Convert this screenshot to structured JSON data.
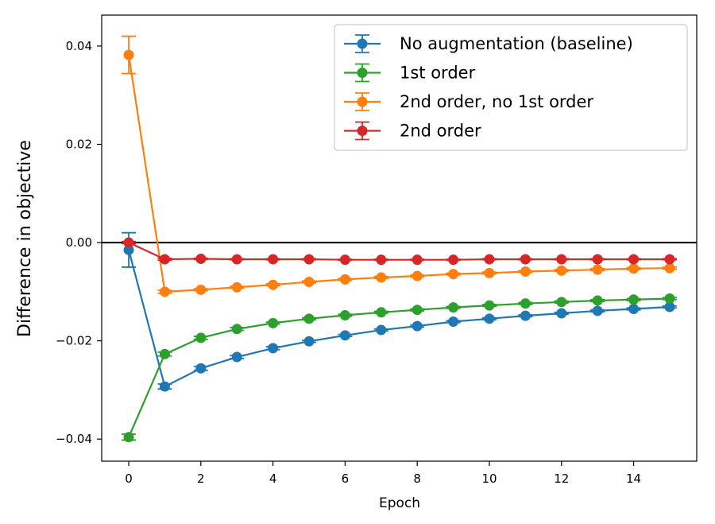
{
  "chart_data": {
    "type": "line",
    "title": "",
    "xlabel": "Epoch",
    "ylabel": "Difference in objective",
    "xlim": [
      -0.75,
      15.75
    ],
    "ylim": [
      -0.0445,
      0.0463
    ],
    "xticks": [
      0,
      2,
      4,
      6,
      8,
      10,
      12,
      14
    ],
    "yticks": [
      -0.04,
      -0.02,
      0.0,
      0.02,
      0.04
    ],
    "ytick_labels": [
      "−0.04",
      "−0.02",
      "0.00",
      "0.02",
      "0.04"
    ],
    "reference_line_y": 0,
    "grid": false,
    "legend_position": "top-right",
    "x": [
      0,
      1,
      2,
      3,
      4,
      5,
      6,
      7,
      8,
      9,
      10,
      11,
      12,
      13,
      14,
      15
    ],
    "series": [
      {
        "name": "No augmentation (baseline)",
        "color": "#1f77b4",
        "values": [
          -0.0015,
          -0.0293,
          -0.0256,
          -0.0233,
          -0.0215,
          -0.0201,
          -0.0189,
          -0.0178,
          -0.017,
          -0.0161,
          -0.0155,
          -0.0149,
          -0.0144,
          -0.0139,
          -0.0135,
          -0.0131
        ],
        "errors": [
          0.0035,
          0.0005,
          0.0004,
          0.0003,
          0.0003,
          0.0002,
          0.0002,
          0.0002,
          0.0002,
          0.0002,
          0.0002,
          0.0002,
          0.0002,
          0.0002,
          0.0002,
          0.0002
        ]
      },
      {
        "name": "1st order",
        "color": "#2ca02c",
        "values": [
          -0.0396,
          -0.0227,
          -0.0194,
          -0.0176,
          -0.0164,
          -0.0155,
          -0.0148,
          -0.0142,
          -0.0137,
          -0.0132,
          -0.0128,
          -0.0124,
          -0.0121,
          -0.0118,
          -0.0116,
          -0.0114
        ],
        "errors": [
          0.0006,
          0.0004,
          0.0003,
          0.0003,
          0.0002,
          0.0002,
          0.0002,
          0.0002,
          0.0002,
          0.0002,
          0.0002,
          0.0002,
          0.0002,
          0.0002,
          0.0002,
          0.0002
        ]
      },
      {
        "name": "2nd order, no 1st order",
        "color": "#ff7f0e",
        "values": [
          0.0382,
          -0.01,
          -0.0096,
          -0.0091,
          -0.0086,
          -0.008,
          -0.0075,
          -0.0071,
          -0.0068,
          -0.0064,
          -0.0062,
          -0.0059,
          -0.0057,
          -0.0055,
          -0.0053,
          -0.0052
        ],
        "errors": [
          0.0038,
          0.0003,
          0.0002,
          0.0002,
          0.0002,
          0.0002,
          0.0002,
          0.0002,
          0.0002,
          0.0002,
          0.0002,
          0.0002,
          0.0002,
          0.0002,
          0.0002,
          0.0002
        ]
      },
      {
        "name": "2nd order",
        "color": "#d62728",
        "values": [
          0.0,
          -0.0034,
          -0.0033,
          -0.0034,
          -0.0034,
          -0.0034,
          -0.0035,
          -0.0035,
          -0.0035,
          -0.0035,
          -0.0034,
          -0.0034,
          -0.0034,
          -0.0034,
          -0.0034,
          -0.0034
        ],
        "errors": [
          0.0002,
          0.0002,
          0.0001,
          0.0001,
          0.0001,
          0.0001,
          0.0001,
          0.0001,
          0.0001,
          0.0001,
          0.0001,
          0.0001,
          0.0001,
          0.0001,
          0.0001,
          0.0001
        ]
      }
    ]
  }
}
